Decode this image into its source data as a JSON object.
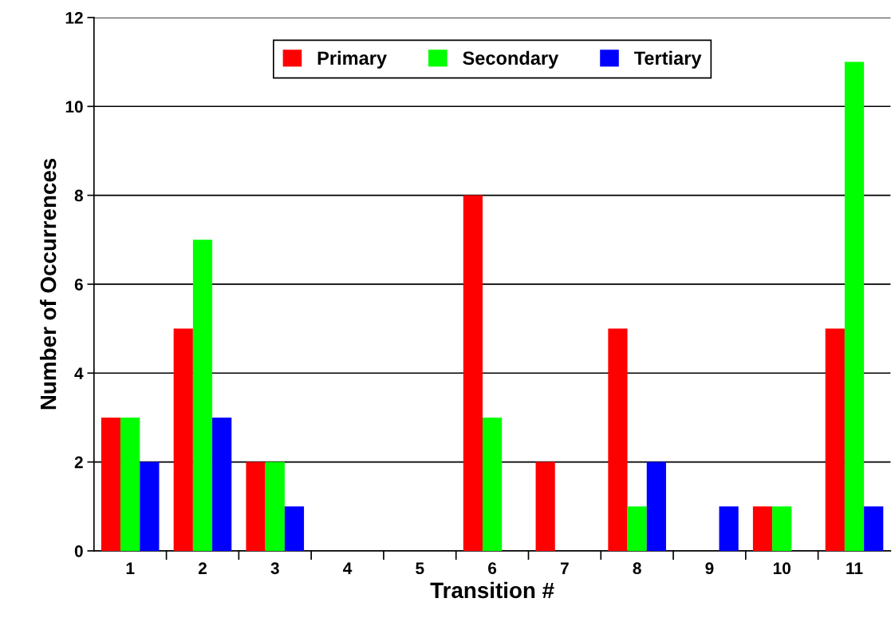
{
  "chart_data": {
    "type": "bar",
    "xlabel": "Transition #",
    "ylabel": "Number of Occurrences",
    "categories": [
      "1",
      "2",
      "3",
      "4",
      "5",
      "6",
      "7",
      "8",
      "9",
      "10",
      "11"
    ],
    "series": [
      {
        "name": "Primary",
        "color": "#ff0000",
        "values": [
          3,
          5,
          2,
          0,
          0,
          8,
          2,
          5,
          0,
          1,
          5
        ]
      },
      {
        "name": "Secondary",
        "color": "#00ff00",
        "values": [
          3,
          7,
          2,
          0,
          0,
          3,
          0,
          1,
          0,
          1,
          11
        ]
      },
      {
        "name": "Tertiary",
        "color": "#0000ff",
        "values": [
          2,
          3,
          1,
          0,
          0,
          0,
          0,
          2,
          1,
          0,
          1
        ]
      }
    ],
    "ylim": [
      0,
      12
    ],
    "yticks": [
      0,
      2,
      4,
      6,
      8,
      10,
      12
    ],
    "grid": "y",
    "legend": "top"
  }
}
